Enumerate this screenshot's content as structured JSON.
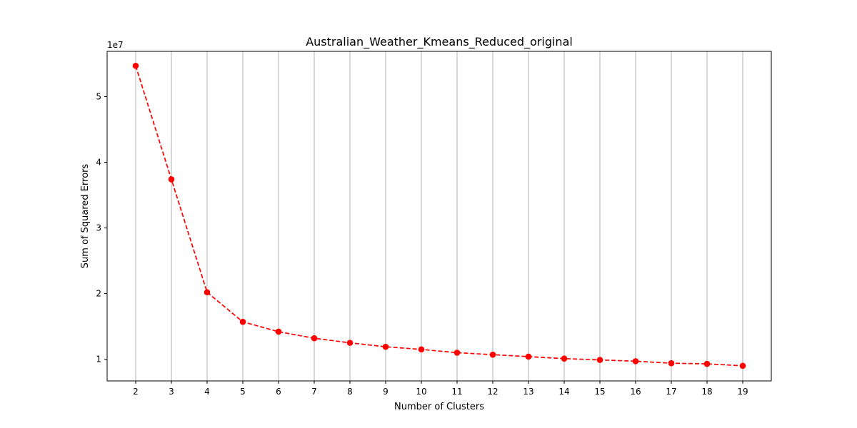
{
  "chart_data": {
    "type": "line",
    "title": "Australian_Weather_Kmeans_Reduced_original",
    "xlabel": "Number of Clusters",
    "ylabel": "Sum of Squared Errors",
    "y_offset_label": "1e7",
    "y_scale_factor": 10000000,
    "x": [
      2,
      3,
      4,
      5,
      6,
      7,
      8,
      9,
      10,
      11,
      12,
      13,
      14,
      15,
      16,
      17,
      18,
      19
    ],
    "series": [
      {
        "values": [
          54700000,
          37400000,
          20200000,
          15700000,
          14200000,
          13200000,
          12500000,
          11900000,
          11500000,
          11000000,
          10700000,
          10400000,
          10100000,
          9900000,
          9700000,
          9400000,
          9300000,
          9000000
        ],
        "color": "#ff0000",
        "line_style": "dashed",
        "marker": "circle"
      }
    ],
    "xlim": [
      1.2,
      19.8
    ],
    "ylim": [
      6700000,
      56900000
    ],
    "x_ticks": [
      2,
      3,
      4,
      5,
      6,
      7,
      8,
      9,
      10,
      11,
      12,
      13,
      14,
      15,
      16,
      17,
      18,
      19
    ],
    "y_ticks": [
      10000000,
      20000000,
      30000000,
      40000000,
      50000000
    ],
    "y_tick_labels": [
      "1",
      "2",
      "3",
      "4",
      "5"
    ],
    "grid": "vertical",
    "grid_color": "#b0b0b0"
  }
}
